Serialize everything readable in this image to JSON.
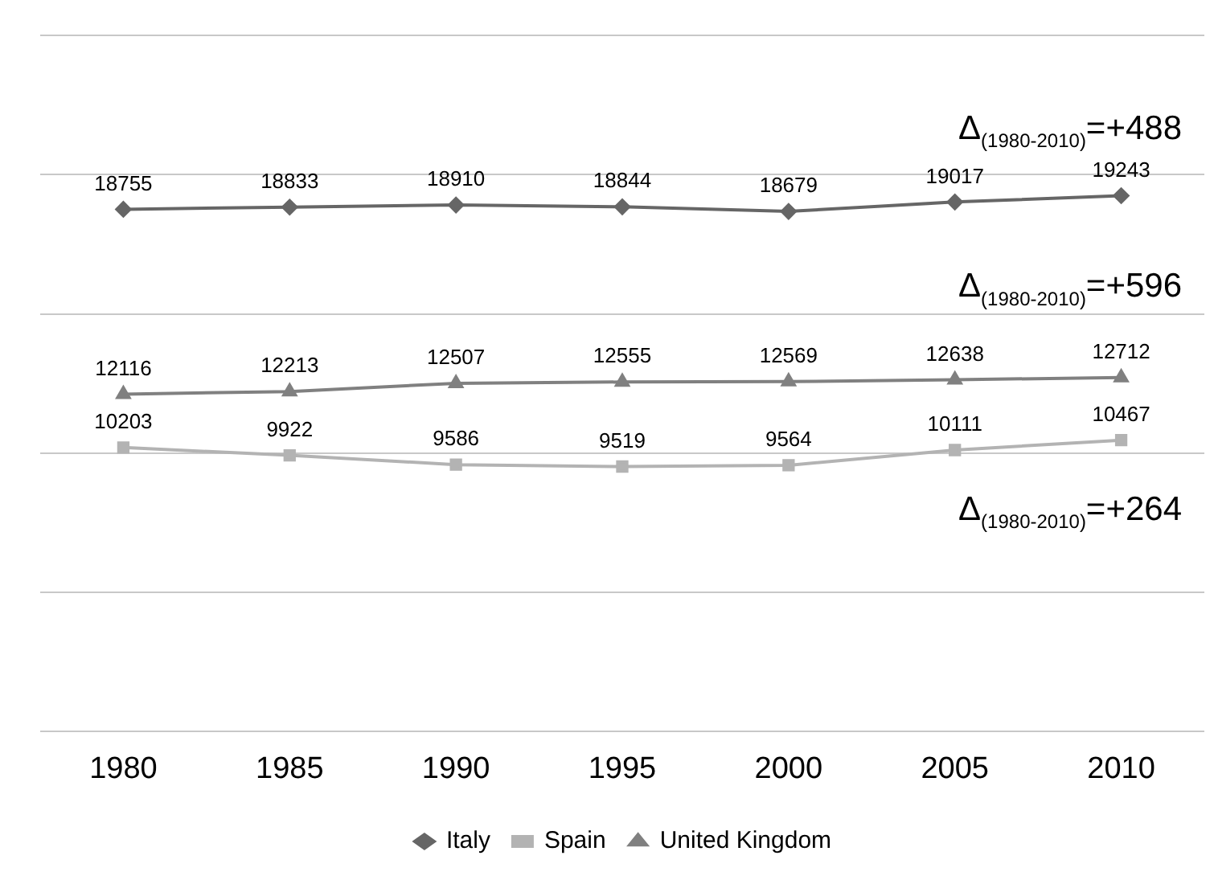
{
  "chart_data": {
    "type": "line",
    "categories": [
      "1980",
      "1985",
      "1990",
      "1995",
      "2000",
      "2005",
      "2010"
    ],
    "series": [
      {
        "name": "Italy",
        "color": "#666666",
        "marker": "diamond",
        "values": [
          18755,
          18833,
          18910,
          18844,
          18679,
          19017,
          19243
        ]
      },
      {
        "name": "Spain",
        "color": "#b3b3b3",
        "marker": "square",
        "values": [
          10203,
          9922,
          9586,
          9519,
          9564,
          10111,
          10467
        ]
      },
      {
        "name": "United Kingdom",
        "color": "#808080",
        "marker": "triangle",
        "values": [
          12116,
          12213,
          12507,
          12555,
          12569,
          12638,
          12712
        ]
      }
    ],
    "ylim": [
      0,
      25000
    ],
    "yticks": [
      {
        "value": 0,
        "label": null
      },
      {
        "value": 5000,
        "label": null
      },
      {
        "value": 10000,
        "label": null
      },
      {
        "value": 15000,
        "label": null
      },
      {
        "value": 20000,
        "label": null
      },
      {
        "value": 25000,
        "label": null
      }
    ],
    "tick_labels": "x",
    "grid": "y",
    "legend": "bottom",
    "data_labels": true,
    "annotations": [
      "Δ$_{(1980-2010)}$=+488",
      "Δ$_{(1980-2010)}$=+596",
      "Δ$_{(1980-2010)}$=+264"
    ]
  }
}
